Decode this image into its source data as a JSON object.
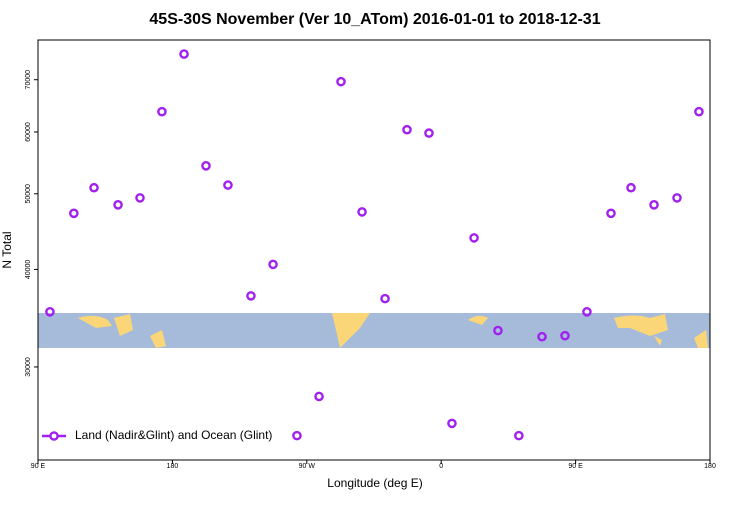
{
  "chart_data": {
    "type": "scatter",
    "title": "45S-30S November (Ver 10_ATom)   2016-01-01 to 2018-12-31",
    "x_label": "Longitude (deg E)",
    "y_label": "N Total",
    "xlim": [
      90,
      540
    ],
    "ylim": [
      22800,
      78700
    ],
    "y_log_scale": true,
    "legend": "bottom-left",
    "xticks": [
      {
        "value": 90,
        "label": "90 E"
      },
      180,
      {
        "value": 270,
        "label": "90 W"
      },
      {
        "value": 360,
        "label": "0"
      },
      {
        "value": 450,
        "label": "90 E"
      },
      {
        "value": 540,
        "label": "180"
      }
    ],
    "yticks": [
      30000,
      40000,
      50000,
      60000,
      70000
    ],
    "series": [
      {
        "name": "Land (Nadir&Glint) and Ocean (Glint)",
        "color": "#a020f0",
        "x": [
          98,
          114,
          127.5,
          143.6,
          158.3,
          173,
          187.8,
          202.5,
          217.2,
          232.6,
          247.4,
          263.4,
          278.2,
          292.9,
          307,
          322.4,
          337.1,
          351.8,
          367.2,
          382,
          398,
          412,
          427.5,
          442.9,
          457.6,
          473.7,
          487.1,
          502.5,
          517.9,
          532.6
        ],
        "values": [
          35300,
          47200,
          50900,
          48400,
          49400,
          63700,
          75500,
          54300,
          51300,
          37000,
          40600,
          24500,
          27500,
          69600,
          47400,
          36700,
          60400,
          59800,
          25400,
          43900,
          33400,
          24500,
          32800,
          32900,
          35300,
          47200,
          50900,
          48400,
          49400,
          63700
        ]
      }
    ]
  }
}
